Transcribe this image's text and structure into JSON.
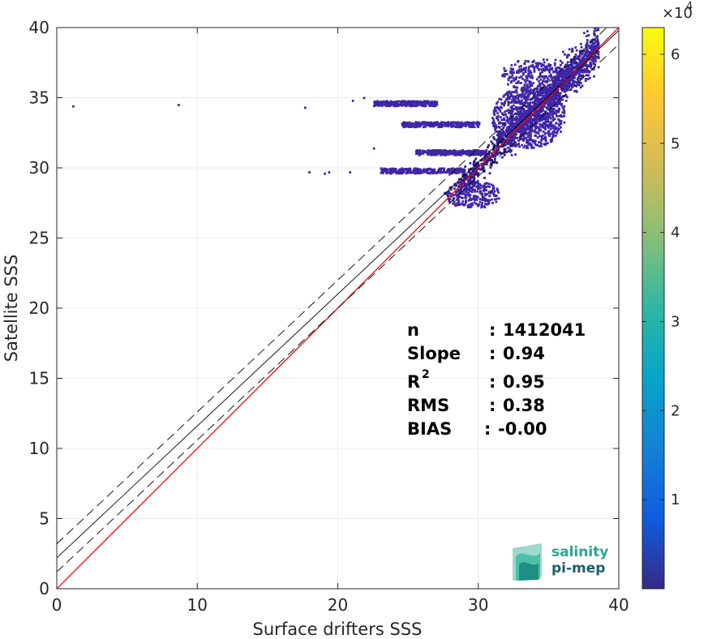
{
  "chart_data": {
    "type": "heatmap",
    "title": "",
    "xlabel": "Surface drifters SSS",
    "ylabel": "Satellite SSS",
    "xlim": [
      0,
      40
    ],
    "ylim": [
      0,
      40
    ],
    "xticks": [
      "0",
      "10",
      "20",
      "30",
      "40"
    ],
    "yticks": [
      "0",
      "5",
      "10",
      "15",
      "20",
      "25",
      "30",
      "35",
      "40"
    ],
    "grid": true,
    "colorbar": {
      "range": [
        0,
        63000
      ],
      "ticks": [
        "1",
        "2",
        "3",
        "4",
        "5",
        "6"
      ],
      "tick_values": [
        10000,
        20000,
        30000,
        40000,
        50000,
        60000
      ],
      "exponent_base": "×10",
      "exponent_power": "4",
      "colormap": "parula"
    },
    "lines": [
      {
        "kind": "identity",
        "color": "#ff0000",
        "slope": 1.0,
        "intercept": 0.0
      },
      {
        "kind": "fit",
        "color": "#000000",
        "slope": 0.94,
        "intercept": 2.2
      },
      {
        "kind": "fit-upper",
        "color": "#000000",
        "dashed": true,
        "slope": 0.94,
        "intercept": 3.2
      },
      {
        "kind": "fit-lower",
        "color": "#000000",
        "dashed": true,
        "slope": 0.94,
        "intercept": 1.2
      },
      {
        "kind": "identity-dashed-overlay",
        "color": "#ff0000",
        "dashed": true,
        "x0": 22,
        "x1": 38
      }
    ],
    "density_regions": [
      {
        "shape": "band",
        "x0": 28.5,
        "x1": 38.5,
        "y_offset": 0.0,
        "half_width": 1.3,
        "density": "high"
      },
      {
        "shape": "band",
        "x0": 32.0,
        "x1": 38.5,
        "y_offset": 0.2,
        "half_width": 2.2,
        "density": "medium"
      },
      {
        "shape": "blob",
        "cx": 33.5,
        "cy": 33.5,
        "rx": 2.6,
        "ry": 2.2,
        "density": "medium"
      },
      {
        "shape": "blob",
        "cx": 29.5,
        "cy": 28.0,
        "rx": 2.0,
        "ry": 1.0,
        "density": "low"
      },
      {
        "shape": "blob",
        "cx": 34.0,
        "cy": 36.5,
        "rx": 2.5,
        "ry": 1.2,
        "density": "low"
      },
      {
        "shape": "streak",
        "y": 31.0,
        "x0": 25.5,
        "x1": 30.5,
        "density": "low"
      },
      {
        "shape": "streak",
        "y": 33.0,
        "x0": 24.5,
        "x1": 30.0,
        "density": "low"
      },
      {
        "shape": "streak",
        "y": 29.7,
        "x0": 23.0,
        "x1": 29.0,
        "density": "low"
      },
      {
        "shape": "streak",
        "y": 34.5,
        "x0": 22.5,
        "x1": 27.0,
        "density": "low"
      }
    ],
    "outliers": [
      {
        "x": 1.1,
        "y": 34.3
      },
      {
        "x": 8.6,
        "y": 34.4
      },
      {
        "x": 17.6,
        "y": 34.2
      },
      {
        "x": 17.9,
        "y": 29.6
      },
      {
        "x": 19.0,
        "y": 29.5
      },
      {
        "x": 19.3,
        "y": 29.6
      },
      {
        "x": 20.8,
        "y": 29.6
      },
      {
        "x": 21.0,
        "y": 34.7
      },
      {
        "x": 21.8,
        "y": 34.9
      },
      {
        "x": 22.5,
        "y": 31.3
      },
      {
        "x": 23.2,
        "y": 29.7
      }
    ],
    "stats": [
      {
        "label": "n",
        "sep": ":",
        "value": "1412041"
      },
      {
        "label": "Slope",
        "sep": ":",
        "value": "0.94"
      },
      {
        "label": "R",
        "sup": "2",
        "sep": ":",
        "value": "0.95"
      },
      {
        "label": "RMS",
        "sep": ":",
        "value": "0.38"
      },
      {
        "label": "BIAS",
        "sep": ":",
        "value": "-0.00"
      }
    ]
  },
  "logo": {
    "line1": "salinity",
    "line2": "pi-mep",
    "color1": "#27a891",
    "color2": "#1b5f6b"
  },
  "colors": {
    "axis": "#262626",
    "grid": "#ebebeb",
    "scatter_low": "#3e26a8",
    "scatter_high": "#2c1a8a"
  }
}
